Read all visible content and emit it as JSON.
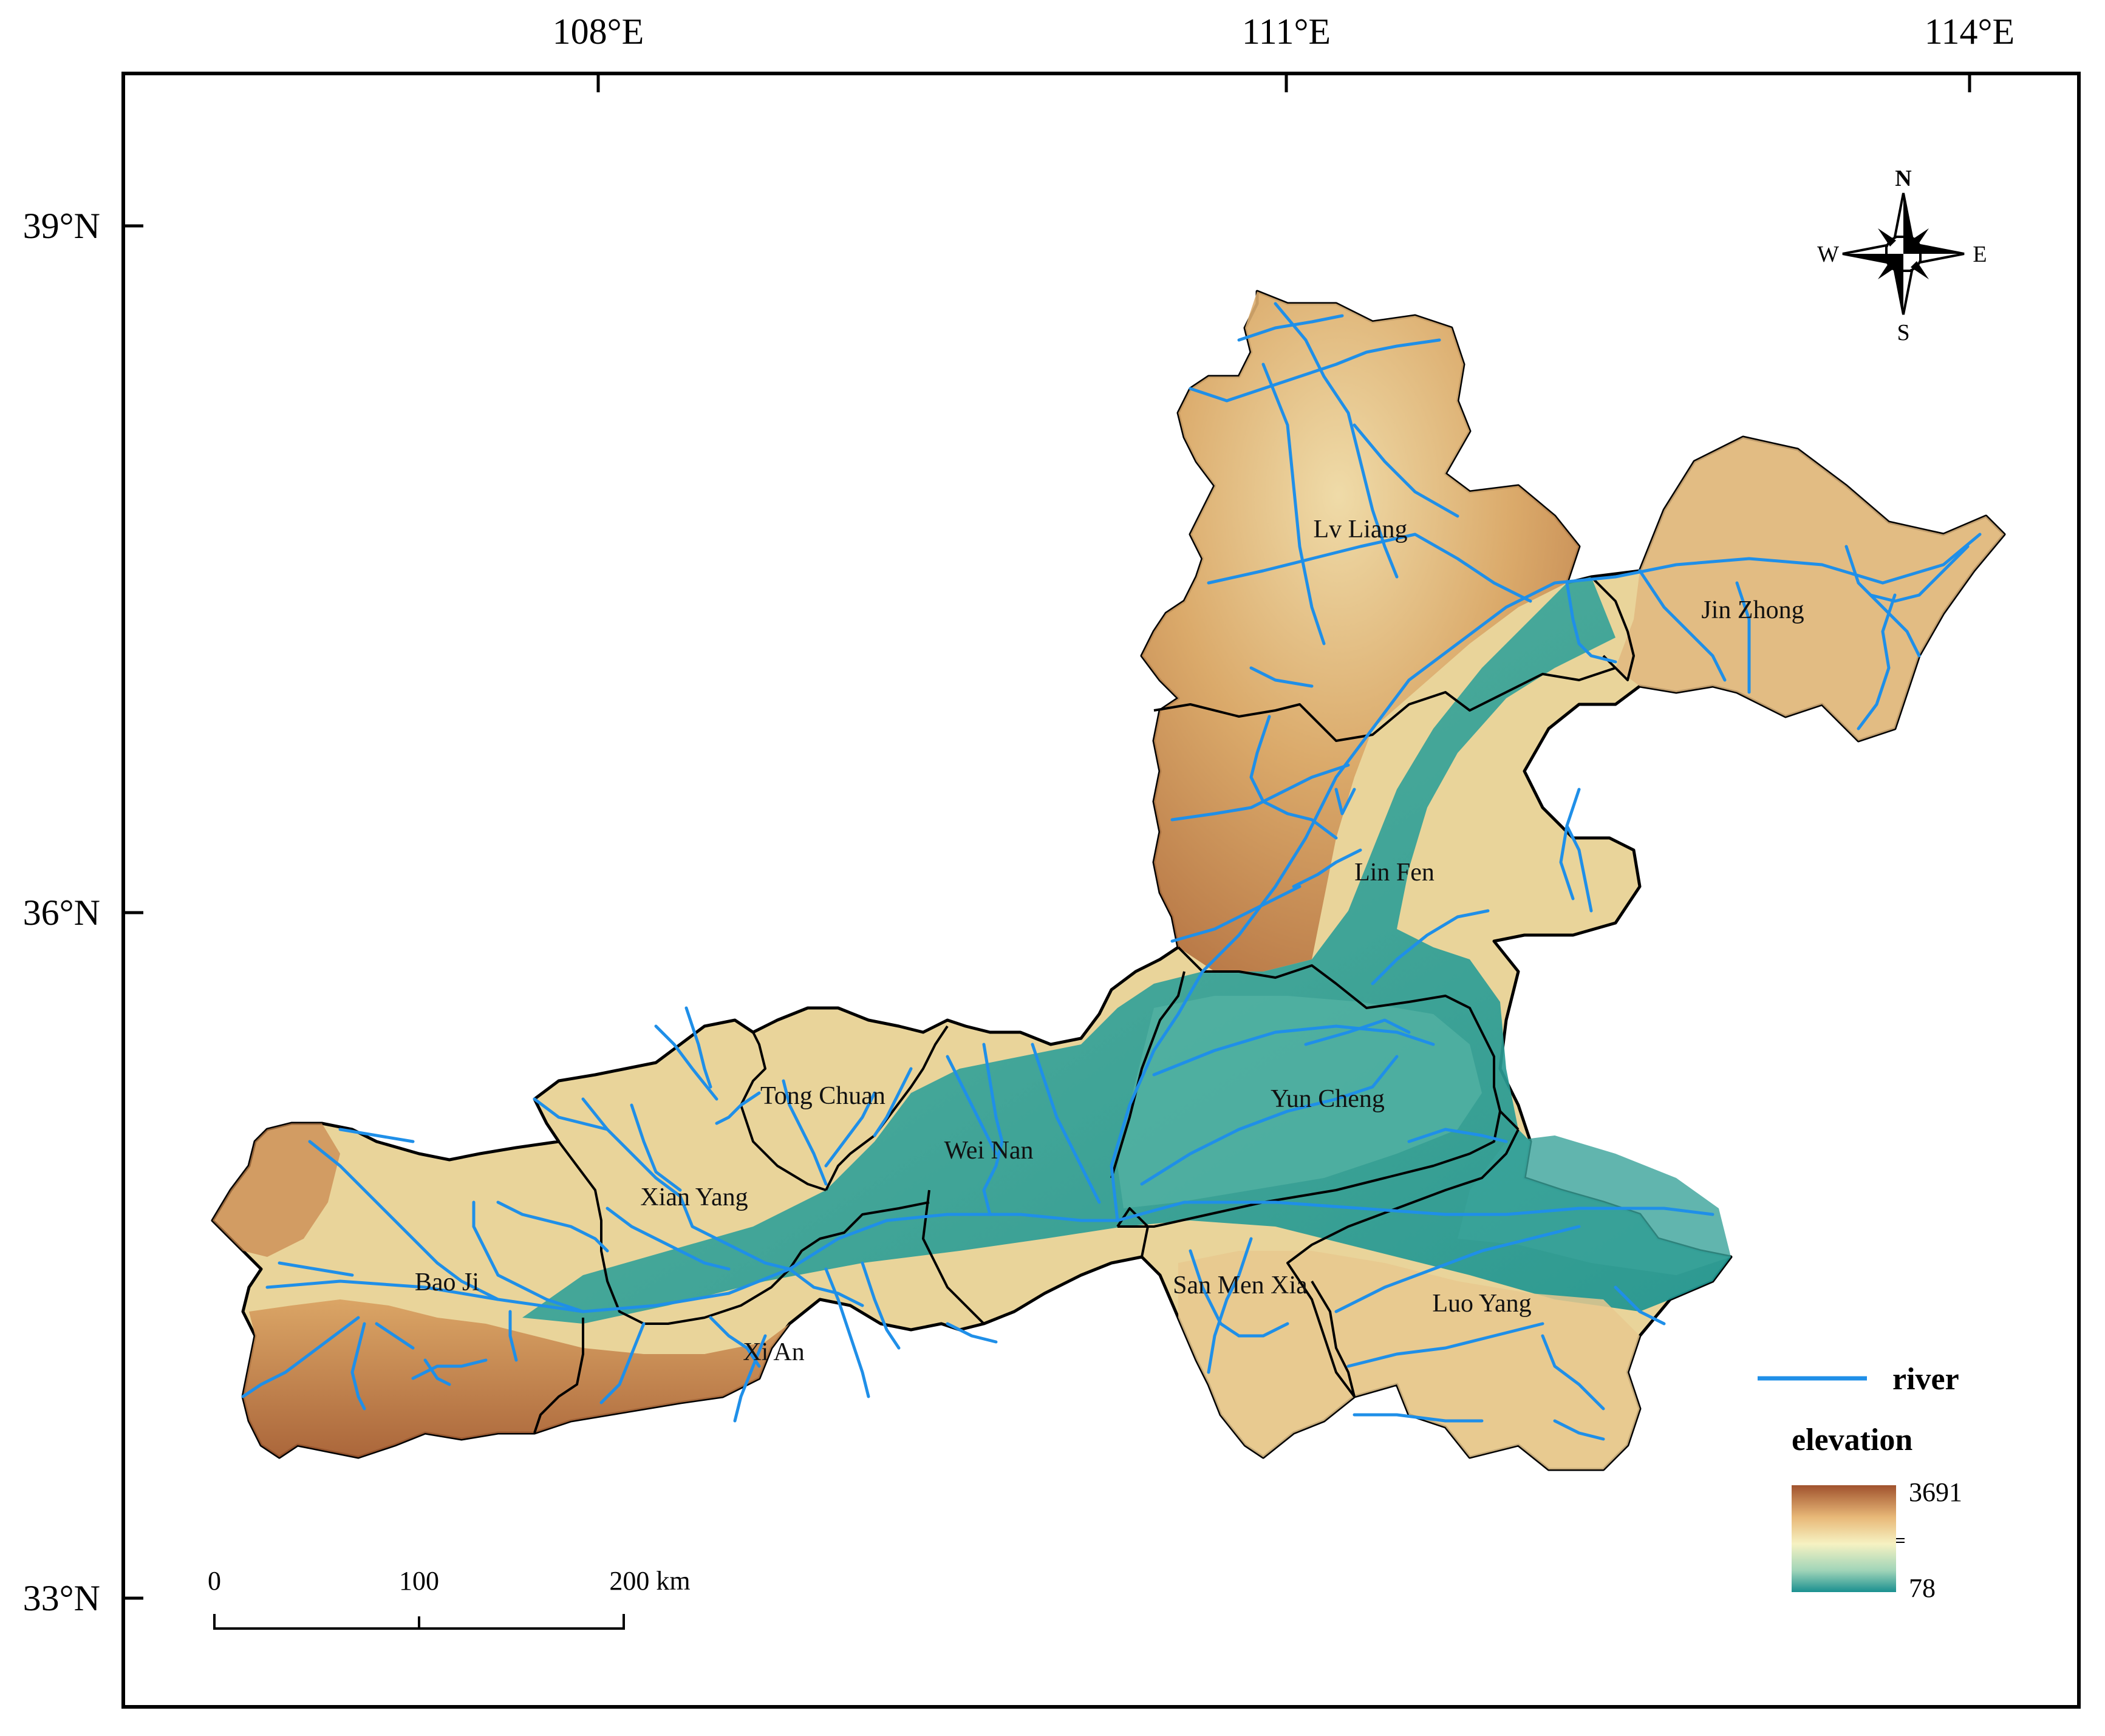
{
  "axes": {
    "longitude_labels": [
      "108°E",
      "111°E",
      "114°E"
    ],
    "latitude_labels": [
      "39°N",
      "36°N",
      "33°N"
    ]
  },
  "compass": {
    "n": "N",
    "s": "S",
    "e": "E",
    "w": "W"
  },
  "cities": [
    {
      "id": "lv-liang",
      "label": "Lv Liang"
    },
    {
      "id": "jin-zhong",
      "label": "Jin Zhong"
    },
    {
      "id": "lin-fen",
      "label": "Lin Fen"
    },
    {
      "id": "yun-cheng",
      "label": "Yun Cheng"
    },
    {
      "id": "tong-chuan",
      "label": "Tong Chuan"
    },
    {
      "id": "wei-nan",
      "label": "Wei Nan"
    },
    {
      "id": "xian-yang",
      "label": "Xian Yang"
    },
    {
      "id": "bao-ji",
      "label": "Bao Ji"
    },
    {
      "id": "xi-an",
      "label": "Xi An"
    },
    {
      "id": "san-men-xia",
      "label": "San Men Xia"
    },
    {
      "id": "luo-yang",
      "label": "Luo Yang"
    }
  ],
  "legend": {
    "river_label": "river",
    "elevation_label": "elevation",
    "elevation_max": "3691",
    "elevation_min": "78",
    "colors": {
      "high": "#a0522d",
      "mid_high": "#e8b878",
      "mid": "#f6f2c2",
      "mid_low": "#9fd4b8",
      "low": "#1a9090"
    },
    "river_color": "#1f8fe8"
  },
  "scale_bar": {
    "labels": [
      "0",
      "100",
      "200 km"
    ]
  }
}
